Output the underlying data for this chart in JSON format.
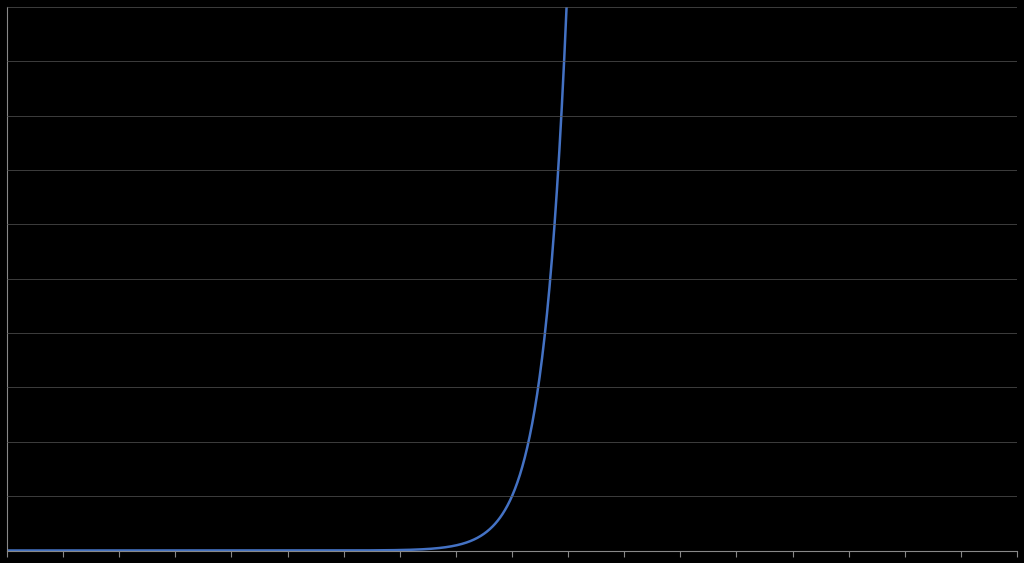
{
  "title": "",
  "background_color": "#000000",
  "plot_bg_color": "#000000",
  "line_color": "#4472C4",
  "line_width": 1.8,
  "grid_color": "#555555",
  "grid_linewidth": 0.5,
  "axis_color": "#888888",
  "tick_color": "#888888",
  "xlim": [
    0,
    90
  ],
  "ylim": [
    0,
    10
  ],
  "x_ticks_count": 19,
  "y_ticks_count": 11,
  "x_angle_max": 88.0,
  "exponent": 8
}
